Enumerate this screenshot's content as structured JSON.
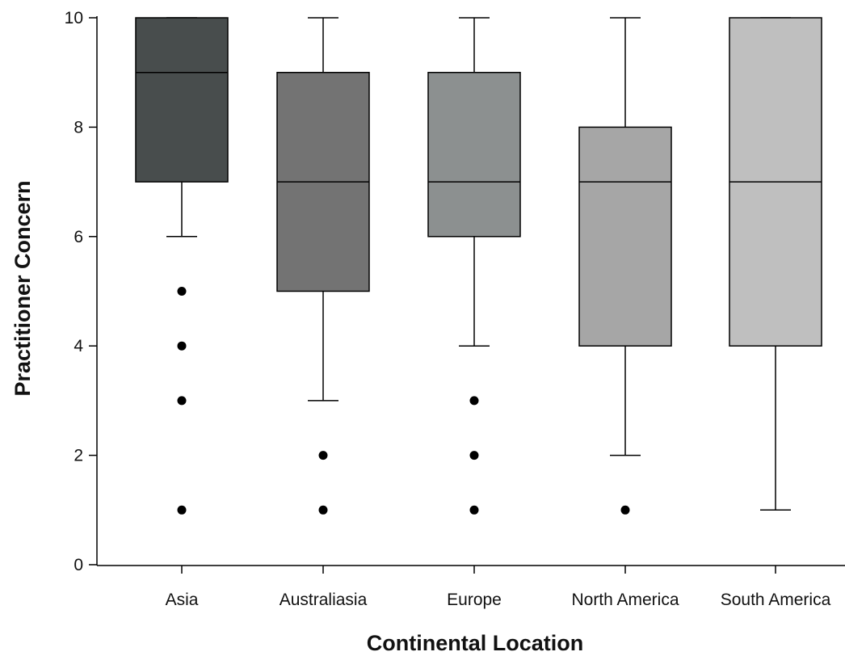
{
  "chart_data": {
    "type": "box",
    "title": "",
    "xlabel": "Continental Location",
    "ylabel": "Practitioner Concern",
    "ylim": [
      0,
      10
    ],
    "yticks": [
      "0",
      "2",
      "4",
      "6",
      "8",
      "10"
    ],
    "grid": false,
    "categories": [
      "Asia",
      "Australiasia",
      "Europe",
      "North America",
      "South America"
    ],
    "boxes": [
      {
        "category": "Asia",
        "whisker_low": 6,
        "q1": 7,
        "median": 9,
        "q3": 10,
        "whisker_high": 10,
        "outliers": [
          5,
          4,
          3,
          1
        ],
        "color": "#484d4d"
      },
      {
        "category": "Australiasia",
        "whisker_low": 3,
        "q1": 5,
        "median": 7,
        "q3": 9,
        "whisker_high": 10,
        "outliers": [
          2,
          1
        ],
        "color": "#737373"
      },
      {
        "category": "Europe",
        "whisker_low": 4,
        "q1": 6,
        "median": 7,
        "q3": 9,
        "whisker_high": 10,
        "outliers": [
          3,
          2,
          1
        ],
        "color": "#8c9090"
      },
      {
        "category": "North America",
        "whisker_low": 2,
        "q1": 4,
        "median": 7,
        "q3": 8,
        "whisker_high": 10,
        "outliers": [
          1
        ],
        "color": "#a6a6a6"
      },
      {
        "category": "South America",
        "whisker_low": 1,
        "q1": 4,
        "median": 7,
        "q3": 10,
        "whisker_high": 10,
        "outliers": [],
        "color": "#bfbfbf"
      }
    ]
  }
}
